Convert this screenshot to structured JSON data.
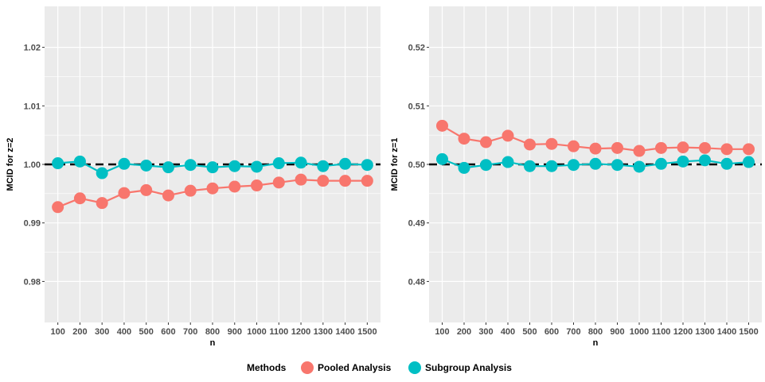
{
  "chart_data": [
    {
      "type": "line",
      "panel": "left",
      "xlabel": "n",
      "ylabel": "MCID for z=2",
      "categories": [
        "100",
        "200",
        "300",
        "400",
        "500",
        "600",
        "700",
        "800",
        "900",
        "1000",
        "1100",
        "1200",
        "1300",
        "1400",
        "1500"
      ],
      "ylim": [
        0.973,
        1.027
      ],
      "yticks": [
        0.98,
        0.99,
        1.0,
        1.01,
        1.02
      ],
      "ytick_labels": [
        "0.98",
        "0.99",
        "1.00",
        "1.01",
        "1.02"
      ],
      "reference_line": 1.0,
      "series": [
        {
          "name": "Pooled Analysis",
          "color": "#F8766D",
          "values": [
            0.9927,
            0.9942,
            0.9934,
            0.9951,
            0.9956,
            0.9947,
            0.9955,
            0.9959,
            0.9962,
            0.9964,
            0.9969,
            0.9974,
            0.9972,
            0.9972,
            0.9972
          ]
        },
        {
          "name": "Subgroup Analysis",
          "color": "#00BFC4",
          "values": [
            1.0002,
            1.0005,
            0.9985,
            1.0001,
            0.9998,
            0.9995,
            0.9999,
            0.9995,
            0.9997,
            0.9996,
            1.0002,
            1.0003,
            0.9997,
            1.0001,
            0.9999
          ]
        }
      ]
    },
    {
      "type": "line",
      "panel": "right",
      "xlabel": "n",
      "ylabel": "MCID for z=1",
      "categories": [
        "100",
        "200",
        "300",
        "400",
        "500",
        "600",
        "700",
        "800",
        "900",
        "1000",
        "1100",
        "1200",
        "1300",
        "1400",
        "1500"
      ],
      "ylim": [
        0.473,
        0.527
      ],
      "yticks": [
        0.48,
        0.49,
        0.5,
        0.51,
        0.52
      ],
      "ytick_labels": [
        "0.48",
        "0.49",
        "0.50",
        "0.51",
        "0.52"
      ],
      "reference_line": 0.5,
      "series": [
        {
          "name": "Pooled Analysis",
          "color": "#F8766D",
          "values": [
            0.5066,
            0.5044,
            0.5038,
            0.5049,
            0.5034,
            0.5035,
            0.5031,
            0.5027,
            0.5028,
            0.5023,
            0.5028,
            0.5029,
            0.5028,
            0.5026,
            0.5026
          ]
        },
        {
          "name": "Subgroup Analysis",
          "color": "#00BFC4",
          "values": [
            0.5009,
            0.4994,
            0.4999,
            0.5004,
            0.4997,
            0.4997,
            0.4999,
            0.5001,
            0.4999,
            0.4996,
            0.5001,
            0.5005,
            0.5007,
            0.5001,
            0.5004
          ]
        }
      ]
    }
  ],
  "legend": {
    "title": "Methods",
    "items": [
      {
        "label": "Pooled Analysis",
        "color": "#F8766D"
      },
      {
        "label": "Subgroup Analysis",
        "color": "#00BFC4"
      }
    ]
  },
  "style": {
    "panel_background": "#EBEBEB",
    "grid_color": "#FFFFFF",
    "reference_line_color": "#000000"
  }
}
